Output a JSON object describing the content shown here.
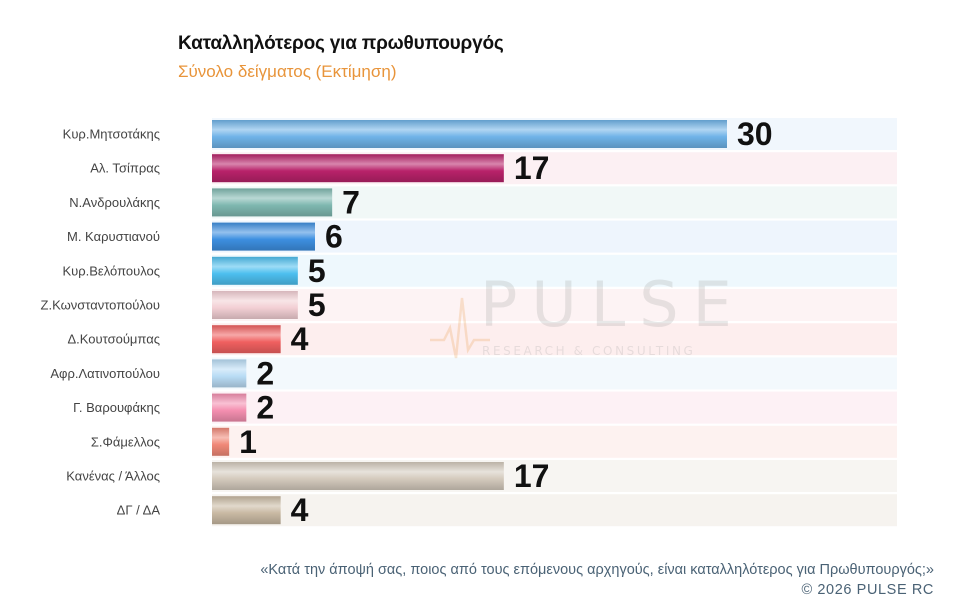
{
  "header": {
    "title": "Καταλληλότερος για πρωθυπουργός",
    "subtitle": "Σύνολο δείγματος  (Εκτίμηση)"
  },
  "watermark": {
    "brand": "PULSE",
    "tagline": "RESEARCH & CONSULTING"
  },
  "footer": {
    "question": "«Κατά την άποψή σας, ποιος από τους επόμενους αρχηγούς, είναι καταλληλότερος για Πρωθυπουργός;»",
    "copyright": "©  2026  PULSE RC"
  },
  "chart_data": {
    "type": "bar",
    "orientation": "horizontal",
    "title": "Καταλληλότερος για πρωθυπουργός",
    "subtitle": "Σύνολο δείγματος  (Εκτίμηση)",
    "xlim": [
      0,
      40
    ],
    "grid": false,
    "categories": [
      "Κυρ.Μητσοτάκης",
      "Αλ. Τσίπρας",
      "Ν.Ανδρουλάκης",
      "Μ. Καρυστιανού",
      "Κυρ.Βελόπουλος",
      "Ζ.Κωνσταντοπούλου",
      "Δ.Κουτσούμπας",
      "Αφρ.Λατινοπούλου",
      "Γ. Βαρουφάκης",
      "Σ.Φάμελλος",
      "Κανένας / Άλλος",
      "ΔΓ / ΔΑ"
    ],
    "values": [
      30,
      17,
      7,
      6,
      5,
      5,
      4,
      2,
      2,
      1,
      17,
      4
    ],
    "colors": [
      "#6fb3e8",
      "#b8226a",
      "#7fb8b0",
      "#3d8fe0",
      "#4dbfef",
      "#f3cfd4",
      "#f06060",
      "#b9dcf5",
      "#f48fb0",
      "#f08878",
      "#d4cabd",
      "#c9b9a3"
    ],
    "row_backgrounds": [
      "#f1f7fd",
      "#fcf0f3",
      "#f1f8f7",
      "#eef5fd",
      "#eef8fd",
      "#fdf3f4",
      "#fdeeee",
      "#f3f9fd",
      "#fdf1f5",
      "#fdf2f0",
      "#f7f5f2",
      "#f6f3ef"
    ]
  }
}
